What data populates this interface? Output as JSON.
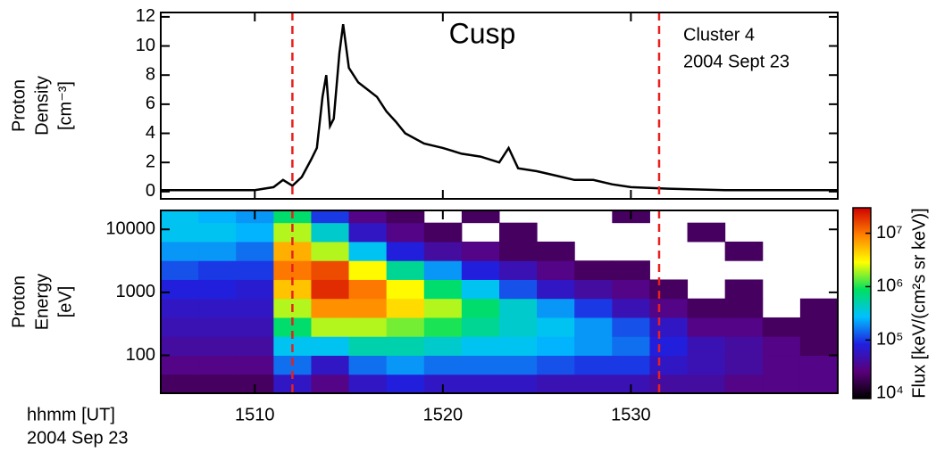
{
  "chart_data": [
    {
      "type": "line",
      "ylabel": [
        "Proton",
        "Density",
        "[cm⁻³]"
      ],
      "x": [
        1505,
        1508,
        1510,
        1511,
        1511.5,
        1512,
        1512.5,
        1513,
        1513.3,
        1513.6,
        1513.8,
        1514,
        1514.2,
        1514.5,
        1514.7,
        1515,
        1515.5,
        1516,
        1516.5,
        1517,
        1517.5,
        1518,
        1519,
        1520,
        1521,
        1522,
        1523,
        1523.5,
        1524,
        1525,
        1526,
        1527,
        1528,
        1529,
        1530,
        1532,
        1535,
        1538,
        1541
      ],
      "y": [
        0.1,
        0.1,
        0.1,
        0.3,
        0.8,
        0.4,
        1.0,
        2.2,
        3.0,
        6.5,
        8.0,
        4.5,
        5.0,
        9.5,
        11.5,
        8.5,
        7.5,
        7.0,
        6.5,
        5.5,
        4.8,
        4.0,
        3.3,
        3.0,
        2.6,
        2.4,
        2.0,
        3.0,
        1.6,
        1.4,
        1.1,
        0.8,
        0.8,
        0.5,
        0.3,
        0.2,
        0.1,
        0.1,
        0.1
      ],
      "color": "#000000",
      "xlim": [
        1505,
        1541
      ],
      "xticks": [
        1510,
        1520,
        1530
      ],
      "ylim": [
        -0.5,
        12.3
      ],
      "yticks": [
        0,
        2,
        4,
        6,
        8,
        10,
        12
      ],
      "vlines": [
        1512,
        1531.5
      ],
      "vline_color": "#e8201e",
      "annotations": [
        {
          "text": "Cusp",
          "color": "#e8201e"
        },
        {
          "text": "Cluster 4"
        },
        {
          "text": "2004 Sept 23"
        }
      ]
    },
    {
      "type": "heatmap",
      "ylabel": [
        "Proton",
        "Energy",
        "[eV]"
      ],
      "xlabel": [
        "hhmm [UT]",
        "2004 Sep 23"
      ],
      "xlim": [
        1505,
        1541
      ],
      "xticks": [
        1510,
        1520,
        1530
      ],
      "ylim": [
        25,
        20000
      ],
      "ylog": true,
      "yticks": [
        100,
        1000,
        10000
      ],
      "x_bins": [
        1505,
        1507,
        1509,
        1511,
        1513,
        1515,
        1517,
        1519,
        1521,
        1523,
        1525,
        1527,
        1529,
        1531,
        1533,
        1535,
        1537,
        1539,
        1541
      ],
      "y_bins": [
        25,
        50,
        100,
        200,
        400,
        800,
        1600,
        3200,
        6400,
        12800,
        20000
      ],
      "z": [
        [
          20000.0,
          20000.0,
          20000.0,
          60000.0,
          30000.0,
          60000.0,
          80000.0,
          60000.0,
          60000.0,
          60000.0,
          50000.0,
          50000.0,
          50000.0,
          40000.0,
          40000.0,
          30000.0,
          30000.0,
          30000.0
        ],
        [
          30000.0,
          30000.0,
          30000.0,
          150000.0,
          60000.0,
          150000.0,
          200000.0,
          150000.0,
          150000.0,
          150000.0,
          120000.0,
          100000.0,
          100000.0,
          60000.0,
          50000.0,
          40000.0,
          30000.0,
          30000.0
        ],
        [
          40000.0,
          40000.0,
          40000.0,
          300000.0,
          300000.0,
          500000.0,
          500000.0,
          400000.0,
          300000.0,
          300000.0,
          250000.0,
          200000.0,
          150000.0,
          80000.0,
          50000.0,
          40000.0,
          30000.0,
          20000.0
        ],
        [
          50000.0,
          50000.0,
          50000.0,
          800000.0,
          2000000.0,
          2000000.0,
          1500000.0,
          1000000.0,
          600000.0,
          400000.0,
          300000.0,
          200000.0,
          120000.0,
          60000.0,
          30000.0,
          30000.0,
          20000.0,
          20000.0
        ],
        [
          60000.0,
          60000.0,
          60000.0,
          2000000.0,
          8000000.0,
          8000000.0,
          4000000.0,
          2000000.0,
          800000.0,
          400000.0,
          200000.0,
          100000.0,
          50000.0,
          30000.0,
          20000.0,
          20000.0,
          null,
          20000.0
        ],
        [
          80000.0,
          80000.0,
          70000.0,
          5000000.0,
          20000000.0,
          10000000.0,
          3000000.0,
          800000.0,
          300000.0,
          120000.0,
          60000.0,
          40000.0,
          30000.0,
          20000.0,
          null,
          20000.0,
          null,
          null
        ],
        [
          120000.0,
          100000.0,
          100000.0,
          10000000.0,
          15000000.0,
          3000000.0,
          600000.0,
          200000.0,
          80000.0,
          50000.0,
          30000.0,
          20000.0,
          20000.0,
          null,
          null,
          null,
          null,
          null
        ],
        [
          200000.0,
          200000.0,
          150000.0,
          6000000.0,
          2000000.0,
          300000.0,
          80000.0,
          40000.0,
          30000.0,
          20000.0,
          20000.0,
          null,
          null,
          null,
          null,
          20000.0,
          null,
          null
        ],
        [
          300000.0,
          300000.0,
          250000.0,
          2000000.0,
          400000.0,
          60000.0,
          30000.0,
          20000.0,
          null,
          20000.0,
          null,
          null,
          null,
          null,
          20000.0,
          null,
          null,
          null
        ],
        [
          300000.0,
          250000.0,
          200000.0,
          800000.0,
          100000.0,
          30000.0,
          20000.0,
          null,
          20000.0,
          null,
          null,
          null,
          20000.0,
          null,
          null,
          null,
          null,
          null
        ]
      ],
      "clim": [
        8000,
        30000000
      ],
      "cticks": [
        {
          "value": 10000,
          "label": "10⁴"
        },
        {
          "value": 100000,
          "label": "10⁵"
        },
        {
          "value": 1000000,
          "label": "10⁶"
        },
        {
          "value": 10000000,
          "label": "10⁷"
        }
      ],
      "clabel": "Flux [keV/(cm²s sr keV)]",
      "colormap": [
        "#000000",
        "#5a007a",
        "#2020e0",
        "#00c0ff",
        "#00e060",
        "#ffff00",
        "#ff8000",
        "#d00000"
      ],
      "vlines": [
        1512,
        1531.5
      ],
      "vline_color": "#e8201e"
    }
  ]
}
